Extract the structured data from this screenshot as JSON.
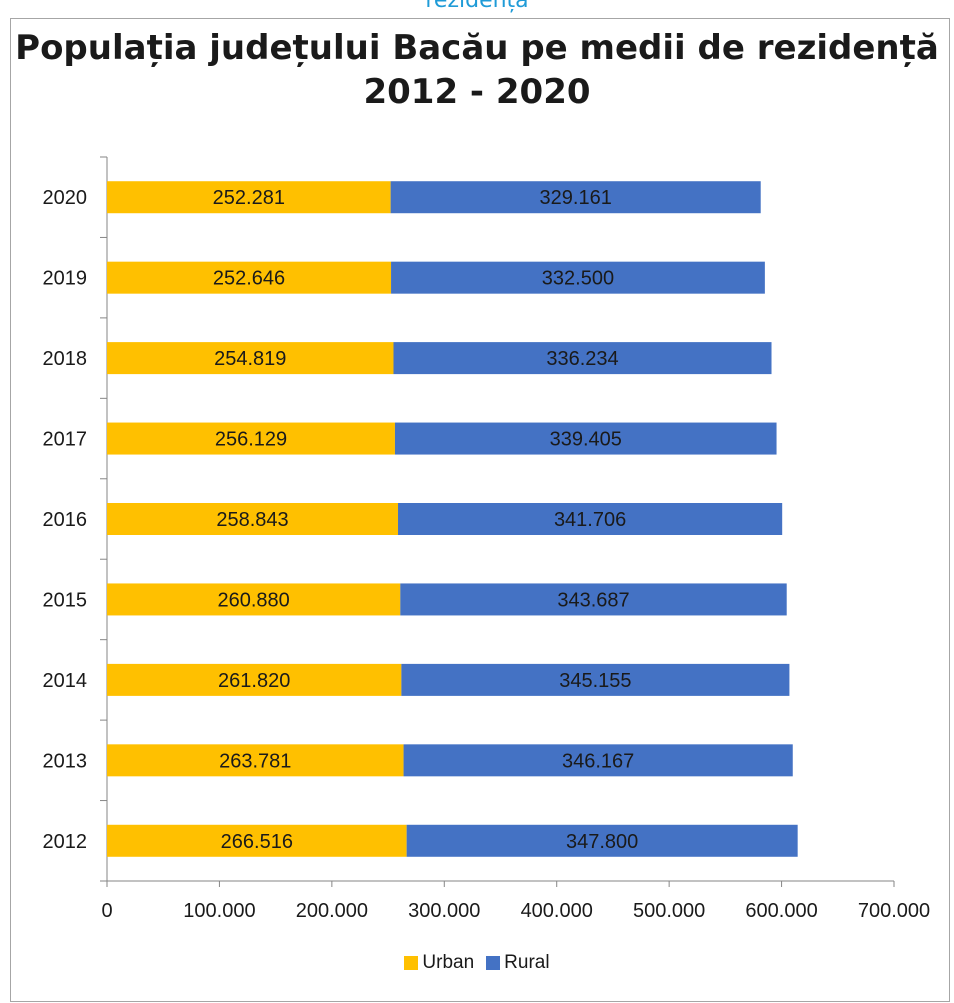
{
  "header": {
    "caption": "rezidență"
  },
  "chart_data": {
    "type": "bar",
    "orientation": "horizontal",
    "stacked": true,
    "title": "Populația județului Bacău pe medii de rezidență 2012 - 2020",
    "categories": [
      "2012",
      "2013",
      "2014",
      "2015",
      "2016",
      "2017",
      "2018",
      "2019",
      "2020"
    ],
    "series": [
      {
        "name": "Urban",
        "color": "#FFC000",
        "values": [
          266516,
          263781,
          261820,
          260880,
          258843,
          256129,
          254819,
          252646,
          252281
        ],
        "labels": [
          "266.516",
          "263.781",
          "261.820",
          "260.880",
          "258.843",
          "256.129",
          "254.819",
          "252.646",
          "252.281"
        ]
      },
      {
        "name": "Rural",
        "color": "#4472C4",
        "values": [
          347800,
          346167,
          345155,
          343687,
          341706,
          339405,
          336234,
          332500,
          329161
        ],
        "labels": [
          "347.800",
          "346.167",
          "345.155",
          "343.687",
          "341.706",
          "339.405",
          "336.234",
          "332.500",
          "329.161"
        ]
      }
    ],
    "xlim": [
      0,
      700000
    ],
    "xticks": [
      0,
      100000,
      200000,
      300000,
      400000,
      500000,
      600000,
      700000
    ],
    "xtick_labels": [
      "0",
      "100.000",
      "200.000",
      "300.000",
      "400.000",
      "500.000",
      "600.000",
      "700.000"
    ],
    "grid": false,
    "legend_position": "bottom"
  }
}
